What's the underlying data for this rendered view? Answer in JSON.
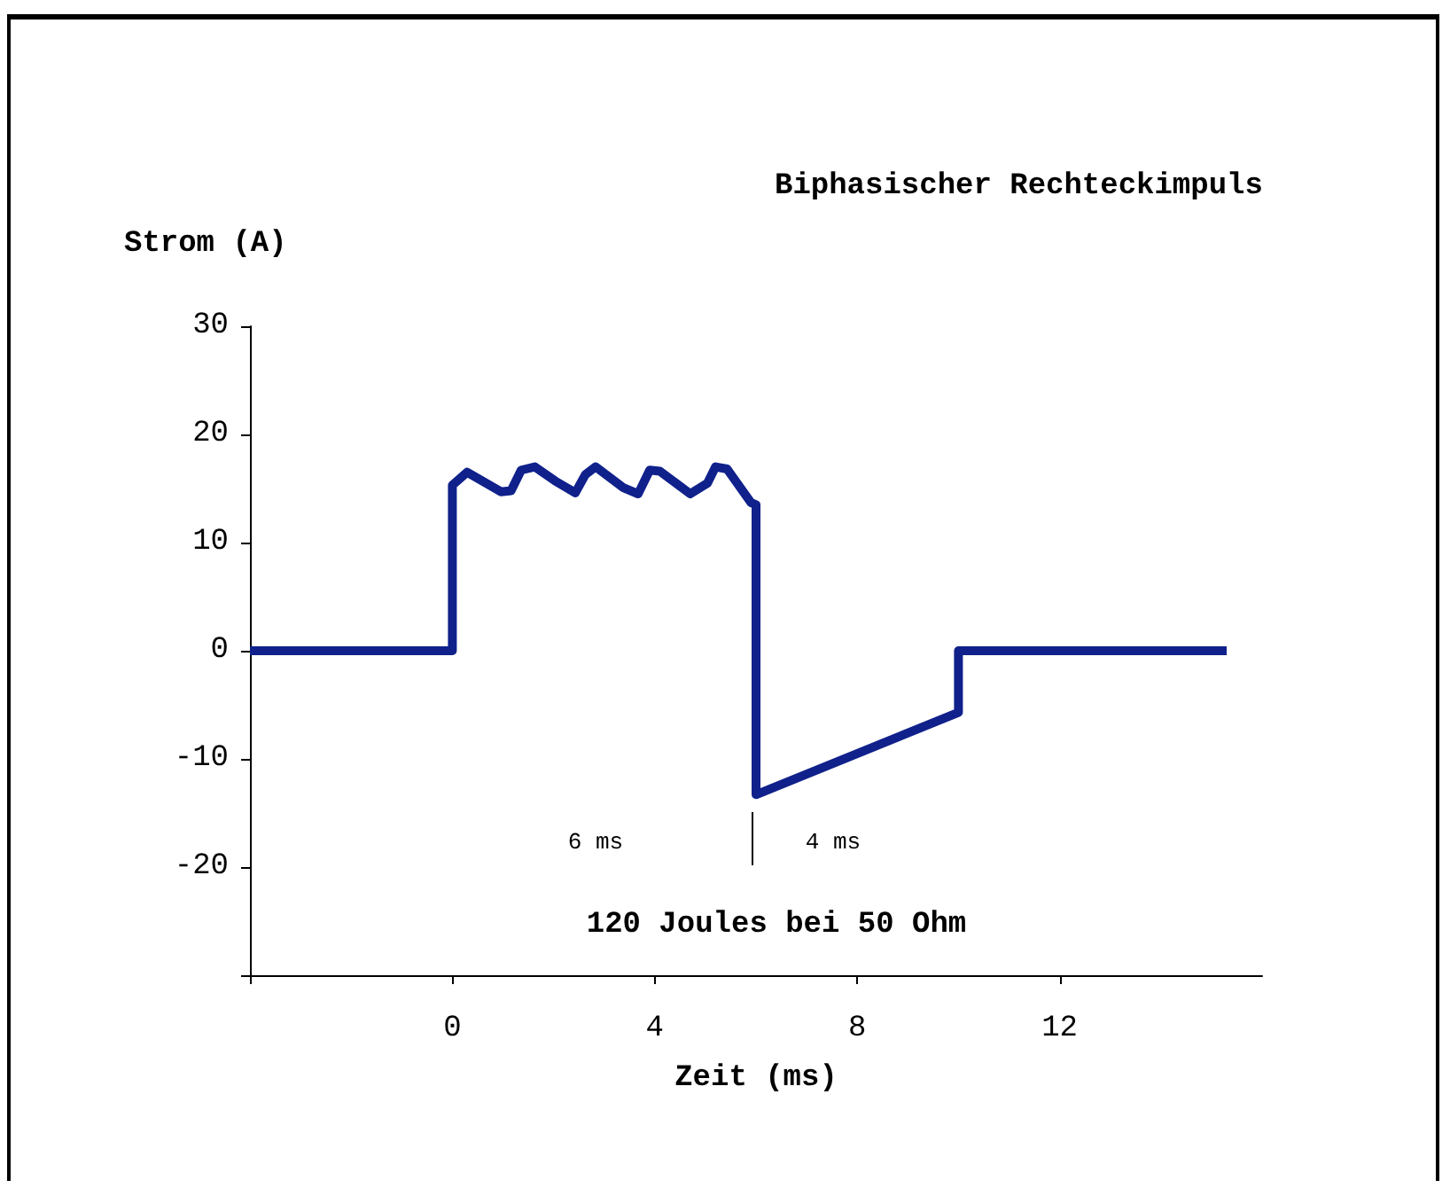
{
  "chart_data": {
    "type": "line",
    "title": "Biphasischer Rechteckimpuls",
    "xlabel": "Zeit (ms)",
    "ylabel": "Strom (A)",
    "series": [
      {
        "color": "#10218b",
        "x": [
          -4,
          0,
          0,
          0.29,
          0.96,
          1.16,
          1.36,
          1.63,
          2.03,
          2.43,
          2.63,
          2.83,
          3.37,
          3.67,
          3.9,
          4.1,
          4.7,
          5.04,
          5.2,
          5.43,
          5.9,
          6,
          6,
          10,
          10,
          15.3
        ],
        "values": [
          0,
          0,
          15.3,
          16.5,
          14.7,
          14.8,
          16.7,
          17,
          15.7,
          14.6,
          16.3,
          17,
          15.1,
          14.5,
          16.7,
          16.6,
          14.5,
          15.5,
          17,
          16.8,
          13.7,
          13.5,
          -13.3,
          -5.7,
          0,
          0
        ]
      }
    ],
    "xlim": [
      -4,
      16
    ],
    "xticks": [
      {
        "value": -4,
        "label": null
      },
      0,
      4,
      8,
      12
    ],
    "ylim": [
      -30,
      30
    ],
    "yticks": [
      {
        "value": -30,
        "label": null
      },
      -20,
      -10,
      0,
      10,
      20,
      30
    ],
    "grid": false,
    "marker": "none",
    "line_style": "solid",
    "annotations": [
      "6 ms",
      "4 ms",
      "120 Joules bei 50 Ohm"
    ]
  }
}
